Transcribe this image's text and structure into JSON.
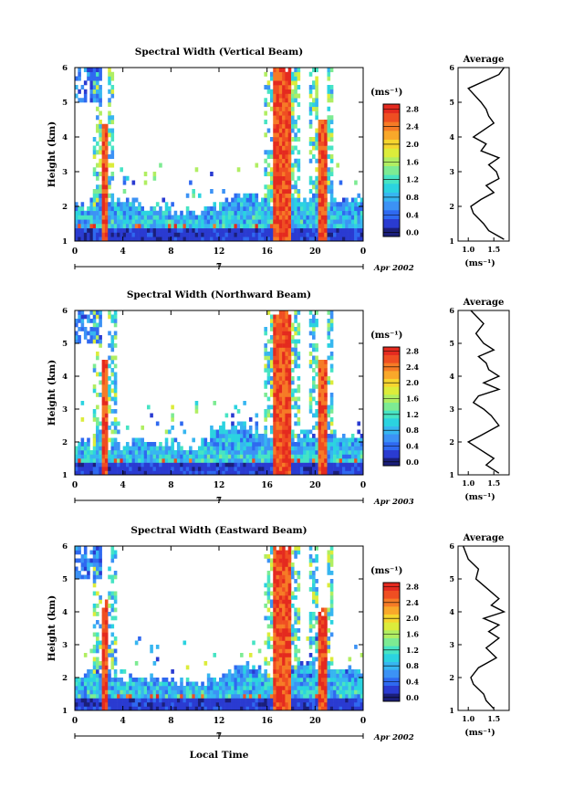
{
  "figure": {
    "date_label": "Apr 2002",
    "date_label_secondary": "Apr 2003",
    "day_label": "7",
    "xlabel_bottom": "Local Time",
    "colorbar_unit": "(ms⁻¹)",
    "profile_title": "Average"
  },
  "chart_data": [
    {
      "type": "heatmap",
      "title": "Spectral Width (Vertical Beam)",
      "ylabel": "Height (km)",
      "xlabel": "",
      "x_ticks": [
        "0",
        "4",
        "8",
        "12",
        "16",
        "20",
        "0"
      ],
      "y_ticks": [
        "1",
        "2",
        "3",
        "4",
        "5",
        "6"
      ],
      "xlim": [
        0,
        24
      ],
      "ylim": [
        1,
        6
      ],
      "colorbar": {
        "ticks": [
          "0.0",
          "0.4",
          "0.8",
          "1.2",
          "1.6",
          "2.0",
          "2.4",
          "2.8"
        ],
        "range": [
          0,
          3.0
        ]
      },
      "features": {
        "background": [
          1.3,
          0.4
        ],
        "near_ground_tops": [
          [
            0,
            2.0
          ],
          [
            2,
            2.2
          ],
          [
            4,
            2.3
          ],
          [
            6,
            2.0
          ],
          [
            10,
            1.8
          ],
          [
            12,
            2.0
          ],
          [
            14,
            2.4
          ],
          [
            16,
            2.1
          ],
          [
            20,
            2.2
          ],
          [
            24,
            2.2
          ]
        ],
        "high_width_columns": [
          [
            2.4,
            0.5,
            4.4
          ],
          [
            17.2,
            1.5,
            6.0
          ],
          [
            20.6,
            0.6,
            4.5
          ]
        ]
      },
      "profile": {
        "xlim": [
          0.8,
          1.8
        ],
        "x_ticks": [
          "1.0",
          "1.5"
        ],
        "xlabel": "(ms⁻¹)",
        "x": [
          1.7,
          1.4,
          1.3,
          1.1,
          1.05,
          1.25,
          1.5,
          1.35,
          1.6,
          1.55,
          1.4,
          1.6,
          1.25,
          1.35,
          1.1,
          1.3,
          1.5,
          1.4,
          1.35,
          1.25,
          1.0,
          1.6,
          1.7
        ],
        "y": [
          1.05,
          1.3,
          1.5,
          1.8,
          2.0,
          2.2,
          2.4,
          2.6,
          2.8,
          3.0,
          3.2,
          3.4,
          3.6,
          3.8,
          4.0,
          4.2,
          4.4,
          4.6,
          4.8,
          5.0,
          5.4,
          5.8,
          6.0
        ]
      }
    },
    {
      "type": "heatmap",
      "title": "Spectral Width (Northward Beam)",
      "ylabel": "Height (km)",
      "xlabel": "",
      "x_ticks": [
        "0",
        "4",
        "8",
        "12",
        "16",
        "20",
        "0"
      ],
      "y_ticks": [
        "1",
        "2",
        "3",
        "4",
        "5",
        "6"
      ],
      "xlim": [
        0,
        24
      ],
      "ylim": [
        1,
        6
      ],
      "colorbar": {
        "ticks": [
          "0.0",
          "0.4",
          "0.8",
          "1.2",
          "1.6",
          "2.0",
          "2.4",
          "2.8"
        ],
        "range": [
          0,
          3.0
        ]
      },
      "features": {
        "background": [
          1.3,
          0.4
        ],
        "near_ground_tops": [
          [
            0,
            2.0
          ],
          [
            2,
            1.9
          ],
          [
            4,
            1.9
          ],
          [
            6,
            2.0
          ],
          [
            10,
            1.8
          ],
          [
            12,
            2.4
          ],
          [
            14,
            2.6
          ],
          [
            16,
            2.1
          ],
          [
            20,
            2.2
          ],
          [
            24,
            2.2
          ]
        ],
        "high_width_columns": [
          [
            2.5,
            0.5,
            4.5
          ],
          [
            17.2,
            1.5,
            6.0
          ],
          [
            20.6,
            0.6,
            4.5
          ]
        ]
      },
      "profile": {
        "xlim": [
          0.8,
          1.8
        ],
        "x_ticks": [
          "1.0",
          "1.5"
        ],
        "xlabel": "(ms⁻¹)",
        "x": [
          1.6,
          1.35,
          1.5,
          1.2,
          1.0,
          1.25,
          1.6,
          1.45,
          1.3,
          1.1,
          1.2,
          1.6,
          1.3,
          1.6,
          1.4,
          1.35,
          1.2,
          1.5,
          1.3,
          1.15,
          1.3,
          1.05
        ],
        "y": [
          1.05,
          1.3,
          1.5,
          1.8,
          2.0,
          2.2,
          2.5,
          2.8,
          3.0,
          3.2,
          3.4,
          3.6,
          3.8,
          4.0,
          4.2,
          4.4,
          4.6,
          4.8,
          5.0,
          5.3,
          5.6,
          6.0
        ]
      }
    },
    {
      "type": "heatmap",
      "title": "Spectral Width (Eastward Beam)",
      "ylabel": "Height (km)",
      "xlabel": "Local Time",
      "x_ticks": [
        "0",
        "4",
        "8",
        "12",
        "16",
        "20",
        "0"
      ],
      "y_ticks": [
        "1",
        "2",
        "3",
        "4",
        "5",
        "6"
      ],
      "xlim": [
        0,
        24
      ],
      "ylim": [
        1,
        6
      ],
      "colorbar": {
        "ticks": [
          "0.0",
          "0.4",
          "0.8",
          "1.2",
          "1.6",
          "2.0",
          "2.4",
          "2.8"
        ],
        "range": [
          0,
          3.0
        ]
      },
      "features": {
        "background": [
          1.3,
          0.4
        ],
        "near_ground_tops": [
          [
            0,
            2.0
          ],
          [
            2,
            2.2
          ],
          [
            4,
            2.0
          ],
          [
            6,
            2.1
          ],
          [
            10,
            1.8
          ],
          [
            12,
            2.0
          ],
          [
            14,
            2.4
          ],
          [
            16,
            2.2
          ],
          [
            20,
            2.4
          ],
          [
            24,
            2.3
          ]
        ],
        "high_width_columns": [
          [
            2.5,
            0.5,
            4.3
          ],
          [
            17.2,
            1.6,
            6.0
          ],
          [
            20.6,
            0.6,
            4.0
          ]
        ]
      },
      "profile": {
        "xlim": [
          0.8,
          1.8
        ],
        "x_ticks": [
          "1.0",
          "1.5"
        ],
        "xlabel": "(ms⁻¹)",
        "x": [
          1.5,
          1.35,
          1.3,
          1.1,
          1.05,
          1.2,
          1.55,
          1.35,
          1.6,
          1.4,
          1.6,
          1.3,
          1.7,
          1.45,
          1.6,
          1.3,
          1.15,
          1.2,
          1.0,
          0.9
        ],
        "y": [
          1.05,
          1.3,
          1.5,
          1.8,
          2.0,
          2.3,
          2.6,
          2.9,
          3.2,
          3.4,
          3.6,
          3.8,
          4.0,
          4.2,
          4.4,
          4.8,
          5.0,
          5.3,
          5.6,
          6.0
        ]
      }
    }
  ]
}
